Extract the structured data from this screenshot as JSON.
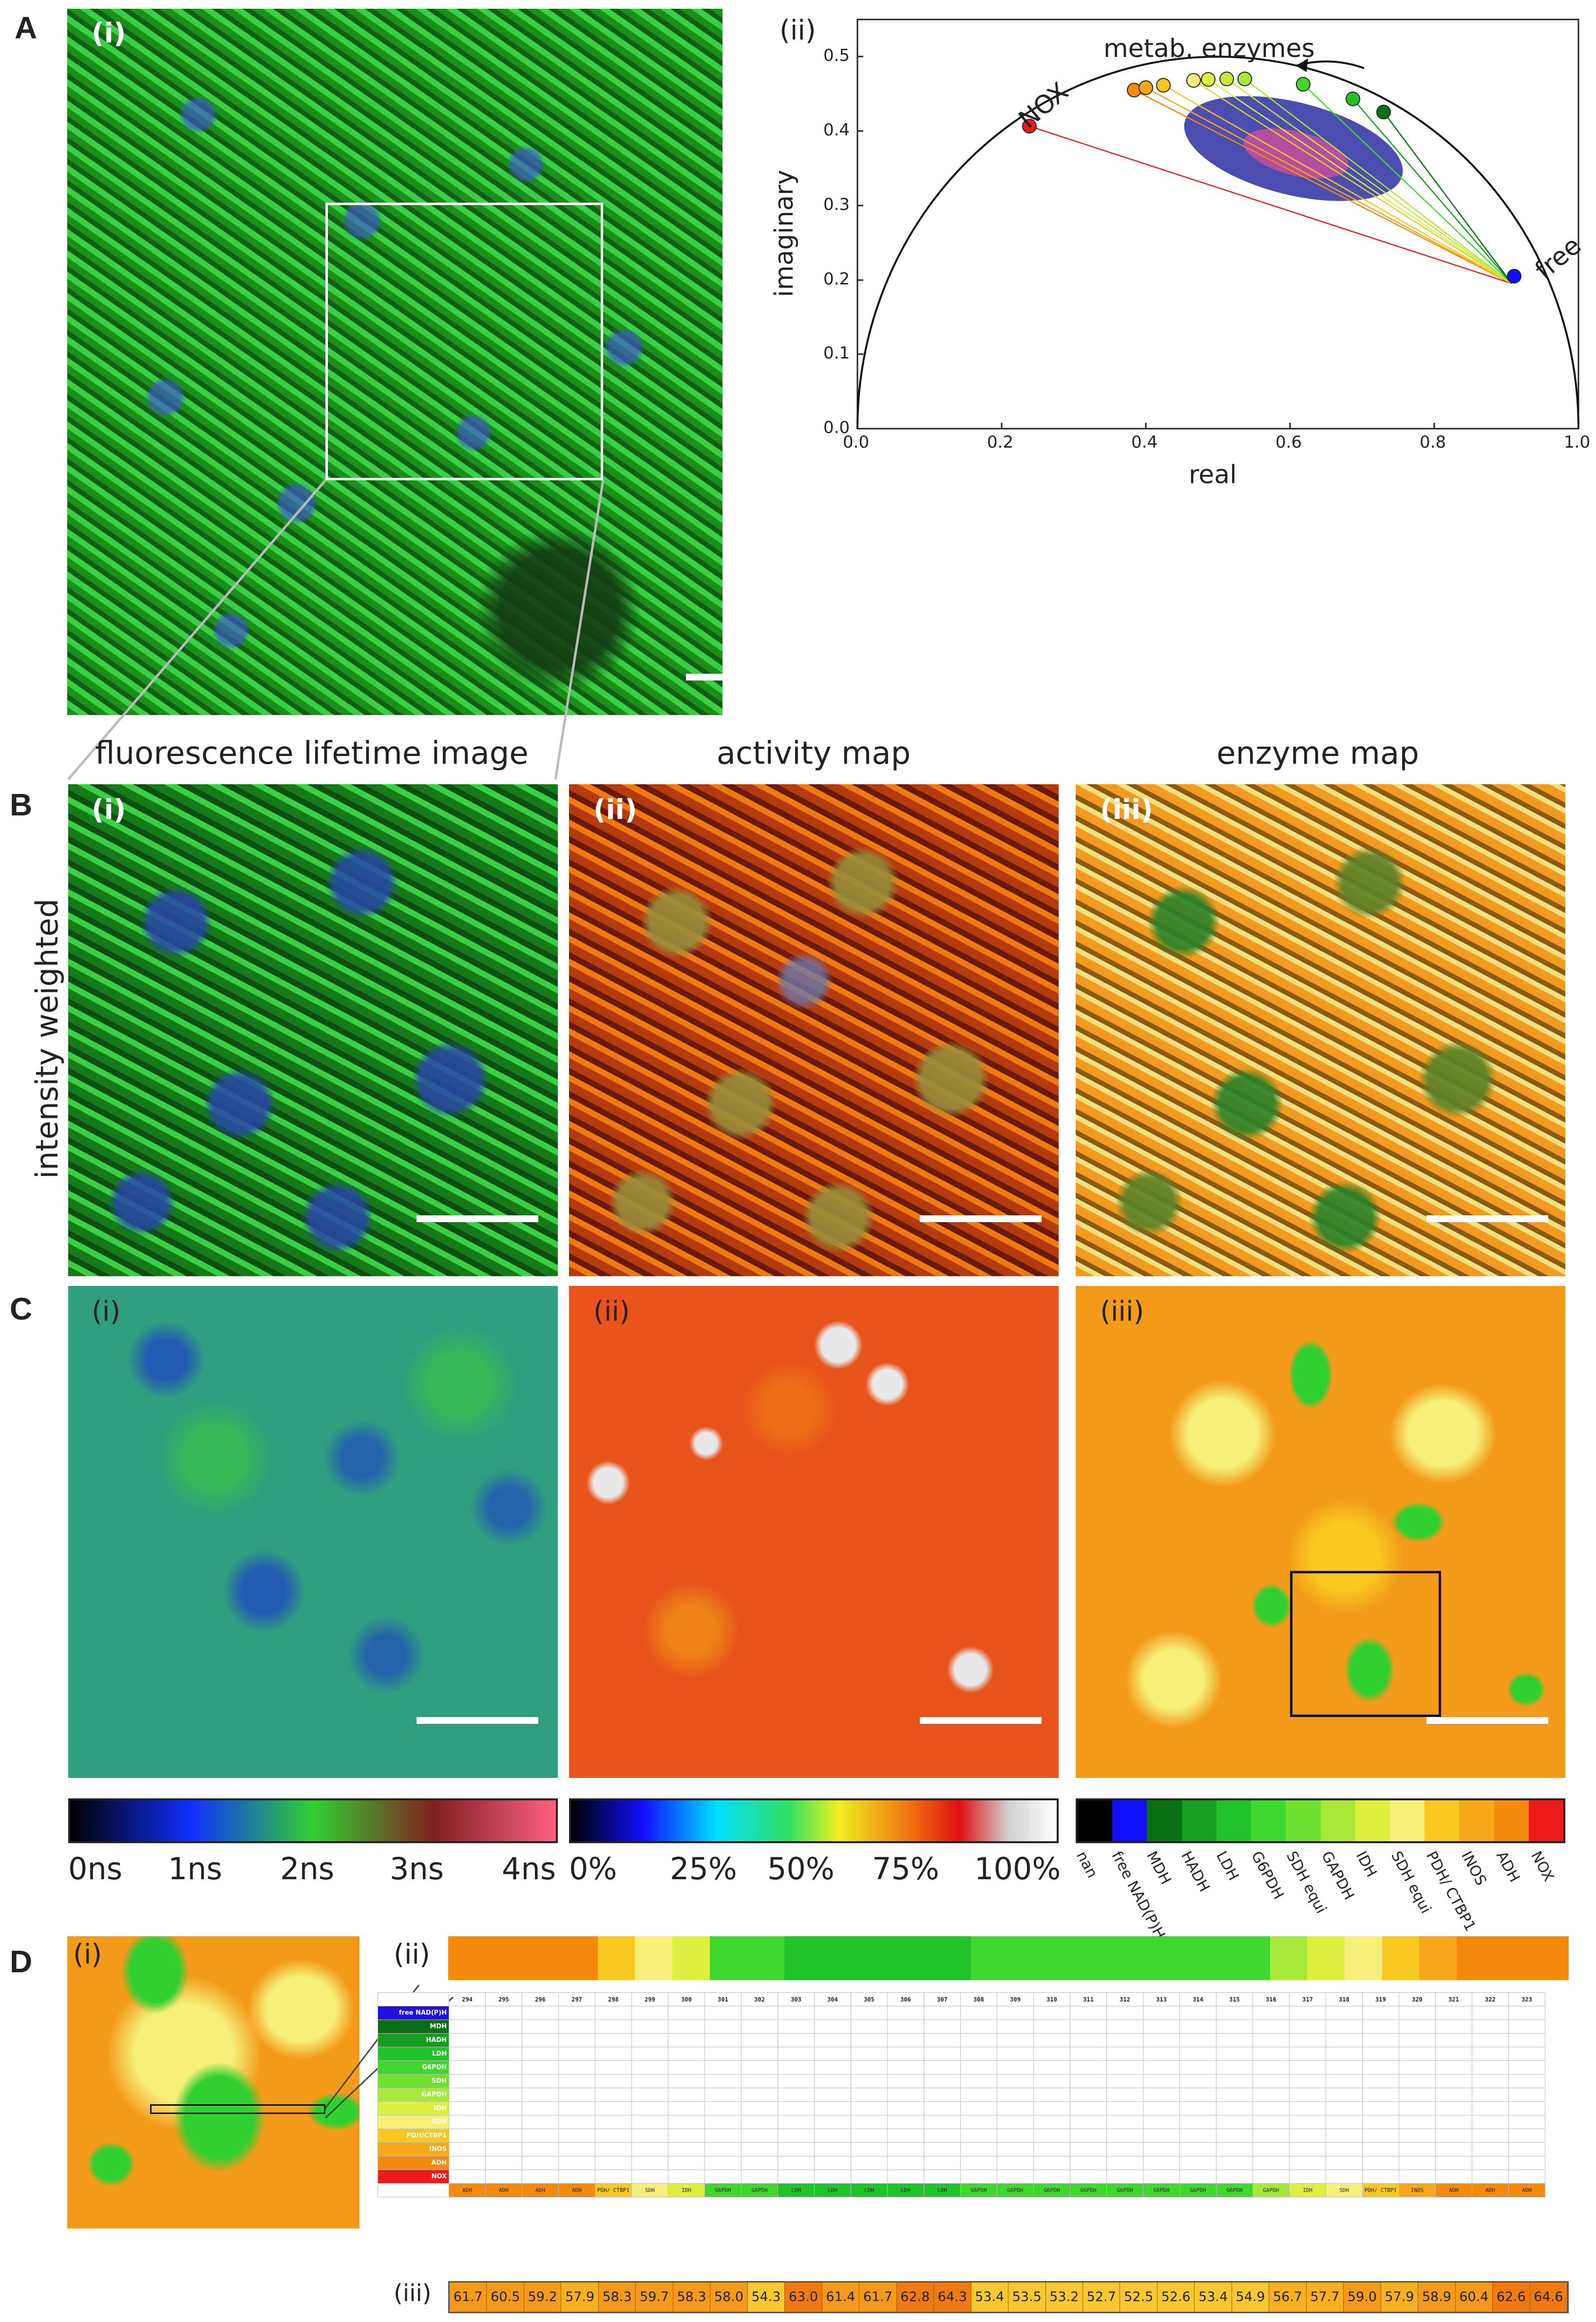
{
  "panels": {
    "A": "A",
    "B": "B",
    "C": "C",
    "D": "D"
  },
  "romans": {
    "i": "(i)",
    "ii": "(ii)",
    "iii": "(iii)"
  },
  "phasor": {
    "xlabel": "real",
    "ylabel": "imaginary",
    "annotation_enzymes": "metab. enzymes",
    "annotation_nox": "NOX",
    "annotation_free": "free",
    "xticks": [
      "0.0",
      "0.2",
      "0.4",
      "0.6",
      "0.8",
      "1.0"
    ],
    "yticks": [
      "0.0",
      "0.1",
      "0.2",
      "0.3",
      "0.4",
      "0.5"
    ]
  },
  "rowB": {
    "side_label": "intensity weighted",
    "col_titles": [
      "fluorescence lifetime image",
      "activity map",
      "enzyme map"
    ]
  },
  "colorbars": {
    "lifetime_ticks": [
      "0ns",
      "1ns",
      "2ns",
      "3ns",
      "4ns"
    ],
    "activity_ticks": [
      "0%",
      "25%",
      "50%",
      "75%",
      "100%"
    ],
    "enzyme_labels": [
      "nan",
      "free NAD(P)H",
      "MDH",
      "HADH",
      "LDH",
      "G6PDH",
      "SDH",
      "GAPDH",
      "IDH",
      "SDH",
      "PDH/ CTBP1",
      "INOS",
      "ADH",
      "NOX"
    ],
    "enzyme_labels_sub": [
      "",
      "",
      "",
      "",
      "",
      "",
      "equi",
      "",
      "",
      "equi",
      "",
      "",
      "",
      ""
    ],
    "enzyme_colors": [
      "#000000",
      "#1010ff",
      "#0a6e12",
      "#14a01e",
      "#20c42a",
      "#40d82e",
      "#70e030",
      "#a8e83a",
      "#ddf040",
      "#f6f07a",
      "#f8c820",
      "#f7a81a",
      "#f38a0e",
      "#ee1a1a"
    ]
  },
  "table": {
    "col_headers": [
      "294",
      "295",
      "296",
      "297",
      "298",
      "299",
      "300",
      "301",
      "302",
      "303",
      "304",
      "305",
      "306",
      "307",
      "308",
      "309",
      "310",
      "311",
      "312",
      "313",
      "314",
      "315",
      "316",
      "317",
      "318",
      "319",
      "320",
      "321",
      "322",
      "323"
    ],
    "row_labels": [
      "free NAD(P)H",
      "MDH",
      "HADH",
      "LDH",
      "G6PDH",
      "SDH",
      "GAPDH",
      "IDH",
      "SDH",
      "PDH/CTBP1",
      "INOS",
      "ADH",
      "NOX"
    ],
    "bottom_labels": [
      "ADH",
      "ADH",
      "ADH",
      "ADH",
      "PDH/ CTBP1",
      "SDH",
      "IDH",
      "G6PDH",
      "G6PDH",
      "LDH",
      "LDH",
      "LDH",
      "LDH",
      "LDH",
      "G6PDH",
      "G6PDH",
      "G6PDH",
      "G6PDH",
      "G6PDH",
      "G6PDH",
      "G6PDH",
      "G6PDH",
      "GAPDH",
      "IDH",
      "SDH",
      "PDH/ CTBP1",
      "INOS",
      "ADH",
      "ADH",
      "ADH"
    ],
    "top_strip_colors": [
      "#f38a0e",
      "#f38a0e",
      "#f38a0e",
      "#f38a0e",
      "#f8c820",
      "#f6f07a",
      "#ddf040",
      "#40d82e",
      "#40d82e",
      "#20c42a",
      "#20c42a",
      "#20c42a",
      "#20c42a",
      "#20c42a",
      "#40d82e",
      "#40d82e",
      "#40d82e",
      "#40d82e",
      "#40d82e",
      "#40d82e",
      "#40d82e",
      "#40d82e",
      "#a8e83a",
      "#ddf040",
      "#f6f07a",
      "#f8c820",
      "#f7a81a",
      "#f38a0e",
      "#f38a0e",
      "#f38a0e"
    ]
  },
  "activity_values": [
    "61.7",
    "60.5",
    "59.2",
    "57.9",
    "58.3",
    "59.7",
    "58.3",
    "58.0",
    "54.3",
    "63.0",
    "61.4",
    "61.7",
    "62.8",
    "64.3",
    "53.4",
    "53.5",
    "53.2",
    "52.7",
    "52.5",
    "52.6",
    "53.4",
    "54.9",
    "56.7",
    "57.7",
    "59.0",
    "57.9",
    "58.9",
    "60.4",
    "62.6",
    "64.6"
  ]
}
